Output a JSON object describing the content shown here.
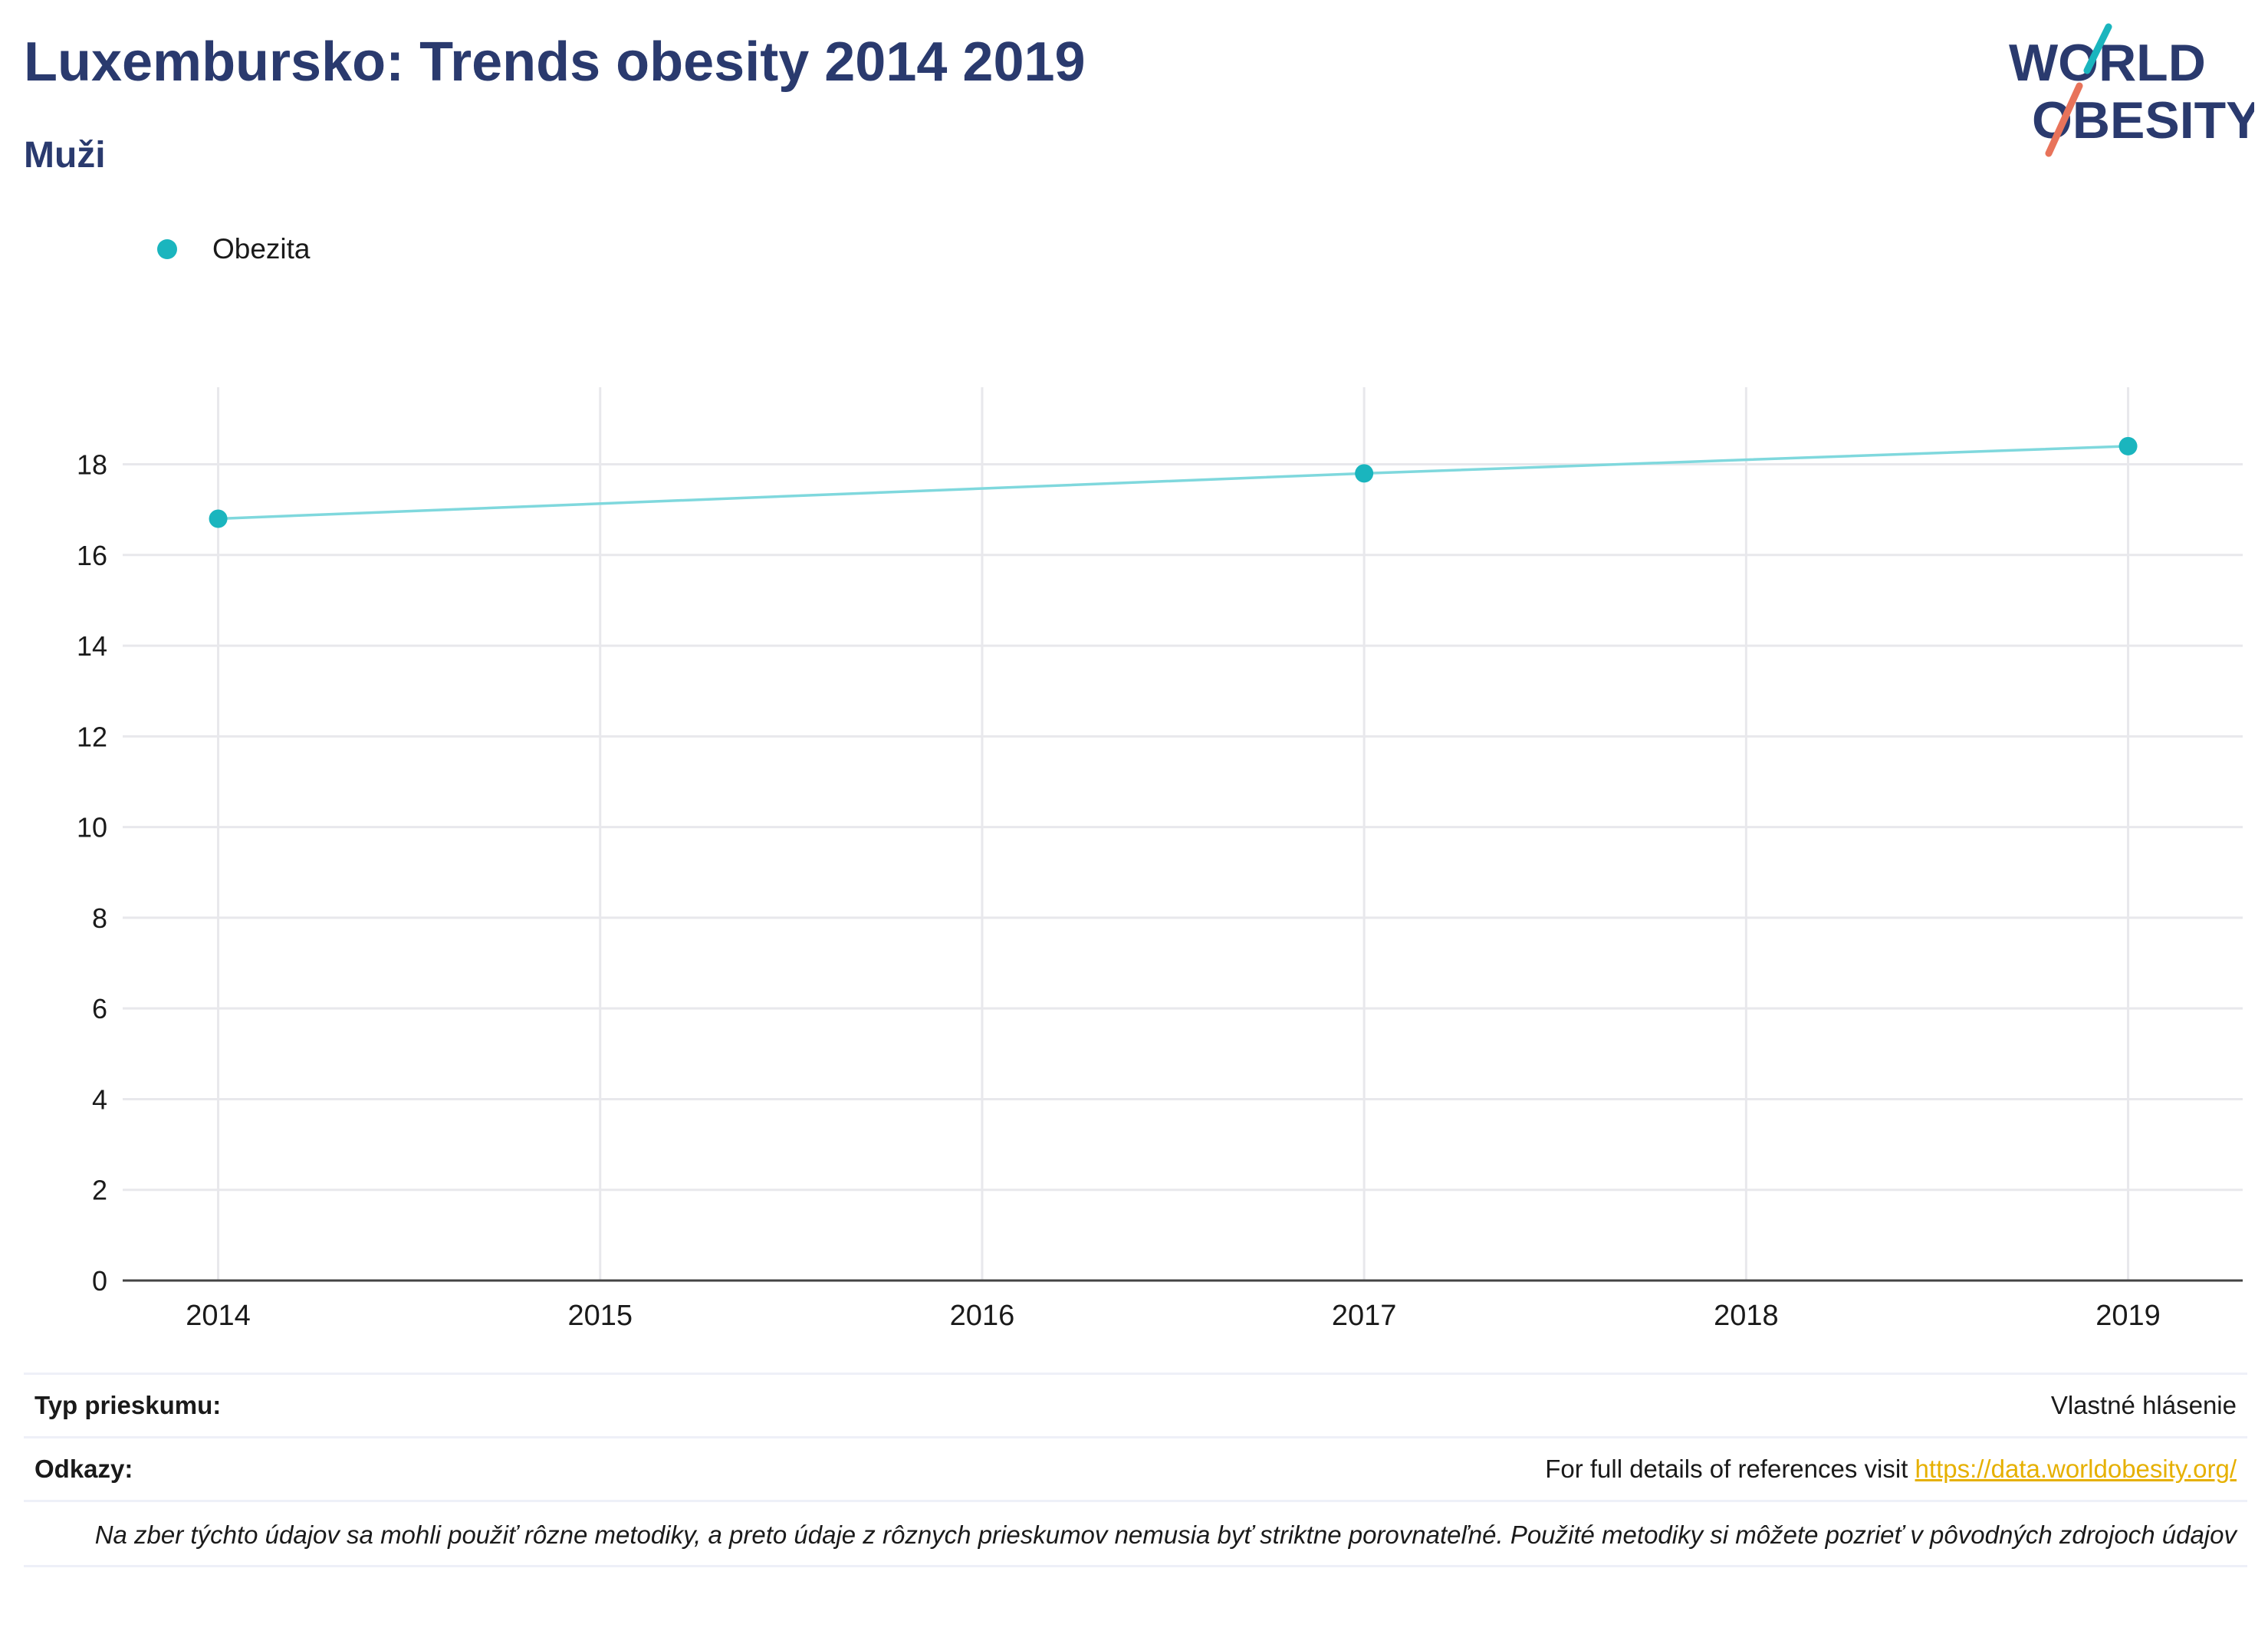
{
  "header": {
    "title": "Luxembursko: Trends obesity 2014 2019",
    "subtitle": "Muži"
  },
  "logo": {
    "line1": "WORLD",
    "line2": "OBESITY",
    "colors": {
      "text": "#2a3a6e",
      "slash_top": "#1ab5be",
      "slash_bottom": "#e8735a"
    }
  },
  "legend": {
    "items": [
      {
        "label": "Obezita",
        "color": "#1ab5be"
      }
    ]
  },
  "chart_data": {
    "type": "line",
    "x": [
      2014,
      2017,
      2019
    ],
    "series": [
      {
        "name": "Obezita",
        "values": [
          16.8,
          17.8,
          18.4
        ],
        "color": "#1ab5be",
        "line_color": "#7fd8dd"
      }
    ],
    "x_ticks": [
      "2014",
      "2015",
      "2016",
      "2017",
      "2018",
      "2019"
    ],
    "y_ticks": [
      "0",
      "2",
      "4",
      "6",
      "8",
      "10",
      "12",
      "14",
      "16",
      "18"
    ],
    "xlim": [
      2013.75,
      2019.3
    ],
    "ylim": [
      0,
      19.7
    ],
    "grid": true
  },
  "footer": {
    "survey_type_label": "Typ prieskumu:",
    "survey_type_value": "Vlastné hlásenie",
    "references_label": "Odkazy:",
    "references_text": "For full details of references visit ",
    "references_link": "https://data.worldobesity.org/",
    "note": "Na zber týchto údajov sa mohli použiť rôzne metodiky, a preto údaje z rôznych prieskumov nemusia byť striktne porovnateľné. Použité metodiky si môžete pozrieť v pôvodných zdrojoch údajov"
  }
}
